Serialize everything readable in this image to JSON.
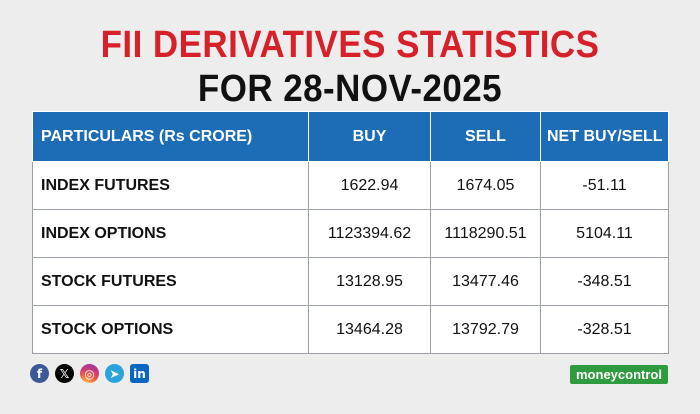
{
  "title": {
    "line1": "FII DERIVATIVES STATISTICS",
    "line2": "FOR 28-NOV-2025"
  },
  "table": {
    "headers": [
      "PARTICULARS (Rs CRORE)",
      "BUY",
      "SELL",
      "NET BUY/SELL"
    ],
    "rows": [
      {
        "particular": "INDEX FUTURES",
        "buy": "1622.94",
        "sell": "1674.05",
        "net": "-51.11"
      },
      {
        "particular": "INDEX OPTIONS",
        "buy": "1123394.62",
        "sell": "1118290.51",
        "net": "5104.11"
      },
      {
        "particular": "STOCK FUTURES",
        "buy": "13128.95",
        "sell": "13477.46",
        "net": "-348.51"
      },
      {
        "particular": "STOCK OPTIONS",
        "buy": "13464.28",
        "sell": "13792.79",
        "net": "-328.51"
      }
    ]
  },
  "socials": [
    {
      "name": "facebook-icon",
      "glyph": "f"
    },
    {
      "name": "x-icon",
      "glyph": "𝕏"
    },
    {
      "name": "instagram-icon",
      "glyph": "◎"
    },
    {
      "name": "telegram-icon",
      "glyph": "➤"
    },
    {
      "name": "linkedin-icon",
      "glyph": "in"
    }
  ],
  "brand": {
    "logo_text": "moneycontrol"
  },
  "colors": {
    "title_red": "#d6202a",
    "header_blue": "#1d6db6",
    "brand_green": "#2f9b3f",
    "background": "#ededed"
  }
}
